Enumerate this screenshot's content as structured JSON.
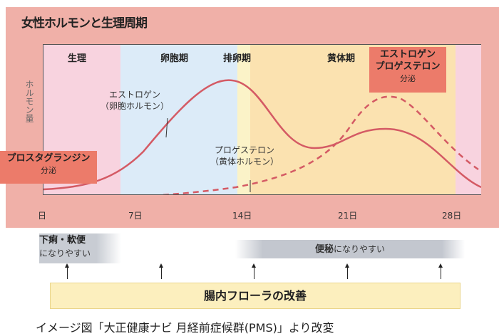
{
  "title": "女性ホルモンと生理周期",
  "y_label": "ホルモン量",
  "phases": [
    "生理",
    "卵胞期",
    "排卵期",
    "黄体期"
  ],
  "days": [
    "日",
    "7日",
    "14日",
    "21日",
    "28日"
  ],
  "curves": {
    "estrogen": [
      "エストロゲン",
      "（卵胞ホルモン）"
    ],
    "progesterone": [
      "プロゲステロン",
      "（黄体ホルモン）"
    ]
  },
  "callouts": {
    "prostaglandin": {
      "name": "プロスタグランジン",
      "sub": "分泌"
    },
    "luteal": {
      "name1": "エストロゲン",
      "name2": "プロゲステロン",
      "sub": "分泌"
    }
  },
  "bowel": {
    "diarrhea_bold": "下痢・軟便",
    "diarrhea_sub": "になりやすい",
    "constipation_bold": "便秘",
    "constipation_sub": "になりやすい",
    "improve": "腸内フローラの改善"
  },
  "caption": "イメージ図「大正健康ナビ 月経前症候群(PMS)」より改変",
  "colors": {
    "panel": "#f0b0a8",
    "menstruation": "#f8d3df",
    "follicular": "#dcebf8",
    "ovulation": "#fbf3c8",
    "luteal": "#fbe2b0",
    "curve": "#d45a64"
  }
}
